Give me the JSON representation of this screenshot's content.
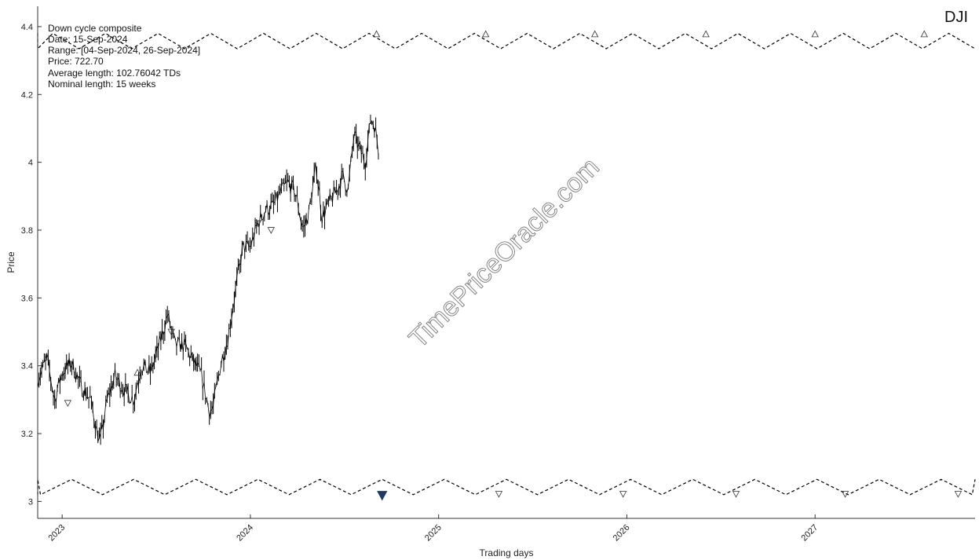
{
  "ticker": "DJI",
  "watermark": "TimePriceOracle.com",
  "info": {
    "lines": [
      "Down cycle composite",
      "Date: 15-Sep-2024",
      "Range: [04-Sep-2024, 26-Sep-2024]",
      "Price: 722.70",
      "Average length: 102.76042 TDs",
      "Nominal length: 15 weeks"
    ]
  },
  "colors": {
    "price": "#000000",
    "marker_current": "#1f3864",
    "dash": "#000000"
  },
  "chart_data": {
    "type": "line",
    "xlabel": "Trading days",
    "ylabel": "Price",
    "xlim": [
      2022.87,
      2027.85
    ],
    "ylim": [
      2.95,
      4.46
    ],
    "x_ticks": [
      {
        "value": 2023,
        "label": "2023"
      },
      {
        "value": 2024,
        "label": "2024"
      },
      {
        "value": 2025,
        "label": "2025"
      },
      {
        "value": 2026,
        "label": "2026"
      },
      {
        "value": 2027,
        "label": "2027"
      }
    ],
    "y_ticks": [
      {
        "value": 3.0,
        "label": "3"
      },
      {
        "value": 3.2,
        "label": "3.2"
      },
      {
        "value": 3.4,
        "label": "3.4"
      },
      {
        "value": 3.6,
        "label": "3.6"
      },
      {
        "value": 3.8,
        "label": "3.8"
      },
      {
        "value": 4.0,
        "label": "4"
      },
      {
        "value": 4.2,
        "label": "4.2"
      },
      {
        "value": 4.4,
        "label": "4.4"
      }
    ],
    "price_series": {
      "x": [
        2022.87,
        2022.92,
        2022.96,
        2023.0,
        2023.05,
        2023.1,
        2023.15,
        2023.2,
        2023.24,
        2023.28,
        2023.33,
        2023.38,
        2023.42,
        2023.47,
        2023.52,
        2023.56,
        2023.6,
        2023.65,
        2023.7,
        2023.74,
        2023.78,
        2023.8,
        2023.84,
        2023.88,
        2023.92,
        2023.96,
        2024.0,
        2024.04,
        2024.08,
        2024.12,
        2024.16,
        2024.2,
        2024.24,
        2024.28,
        2024.31,
        2024.35,
        2024.38,
        2024.42,
        2024.46,
        2024.49,
        2024.52,
        2024.55,
        2024.58,
        2024.61,
        2024.64,
        2024.66,
        2024.68
      ],
      "y": [
        3.36,
        3.42,
        3.3,
        3.38,
        3.41,
        3.34,
        3.3,
        3.17,
        3.3,
        3.37,
        3.33,
        3.3,
        3.4,
        3.38,
        3.47,
        3.55,
        3.46,
        3.46,
        3.41,
        3.37,
        3.27,
        3.27,
        3.4,
        3.48,
        3.62,
        3.75,
        3.75,
        3.82,
        3.86,
        3.87,
        3.91,
        3.94,
        3.91,
        3.8,
        3.85,
        3.99,
        3.84,
        3.88,
        3.92,
        3.96,
        3.92,
        4.08,
        4.04,
        4.0,
        4.13,
        4.11,
        4.04
      ],
      "volatility": 0.022
    },
    "upper_wave": {
      "x_start": 2022.87,
      "x_end": 2027.85,
      "y_high": 4.38,
      "y_low": 4.335,
      "period": 0.28,
      "phase_x": 2022.95
    },
    "lower_wave": {
      "x_start": 2022.87,
      "x_end": 2027.85,
      "y_high": 3.065,
      "y_low": 3.02,
      "period": 0.33,
      "phase_x": 2023.05
    },
    "upper_markers": {
      "x": [
        2024.67,
        2025.25,
        2025.83,
        2026.42,
        2027.0,
        2027.58
      ],
      "y": 4.378
    },
    "lower_markers": {
      "x": [
        2025.32,
        2025.98,
        2026.58,
        2027.16,
        2027.76
      ],
      "y": 3.022
    },
    "price_markers_up": {
      "x": [
        2023.4
      ],
      "y": [
        3.38
      ]
    },
    "price_markers_down": {
      "x": [
        2023.03,
        2023.58,
        2024.04,
        2024.11
      ],
      "y": [
        3.29,
        3.5,
        3.82,
        3.8
      ]
    },
    "current_marker": {
      "x": 2024.7,
      "y": 3.018
    }
  }
}
